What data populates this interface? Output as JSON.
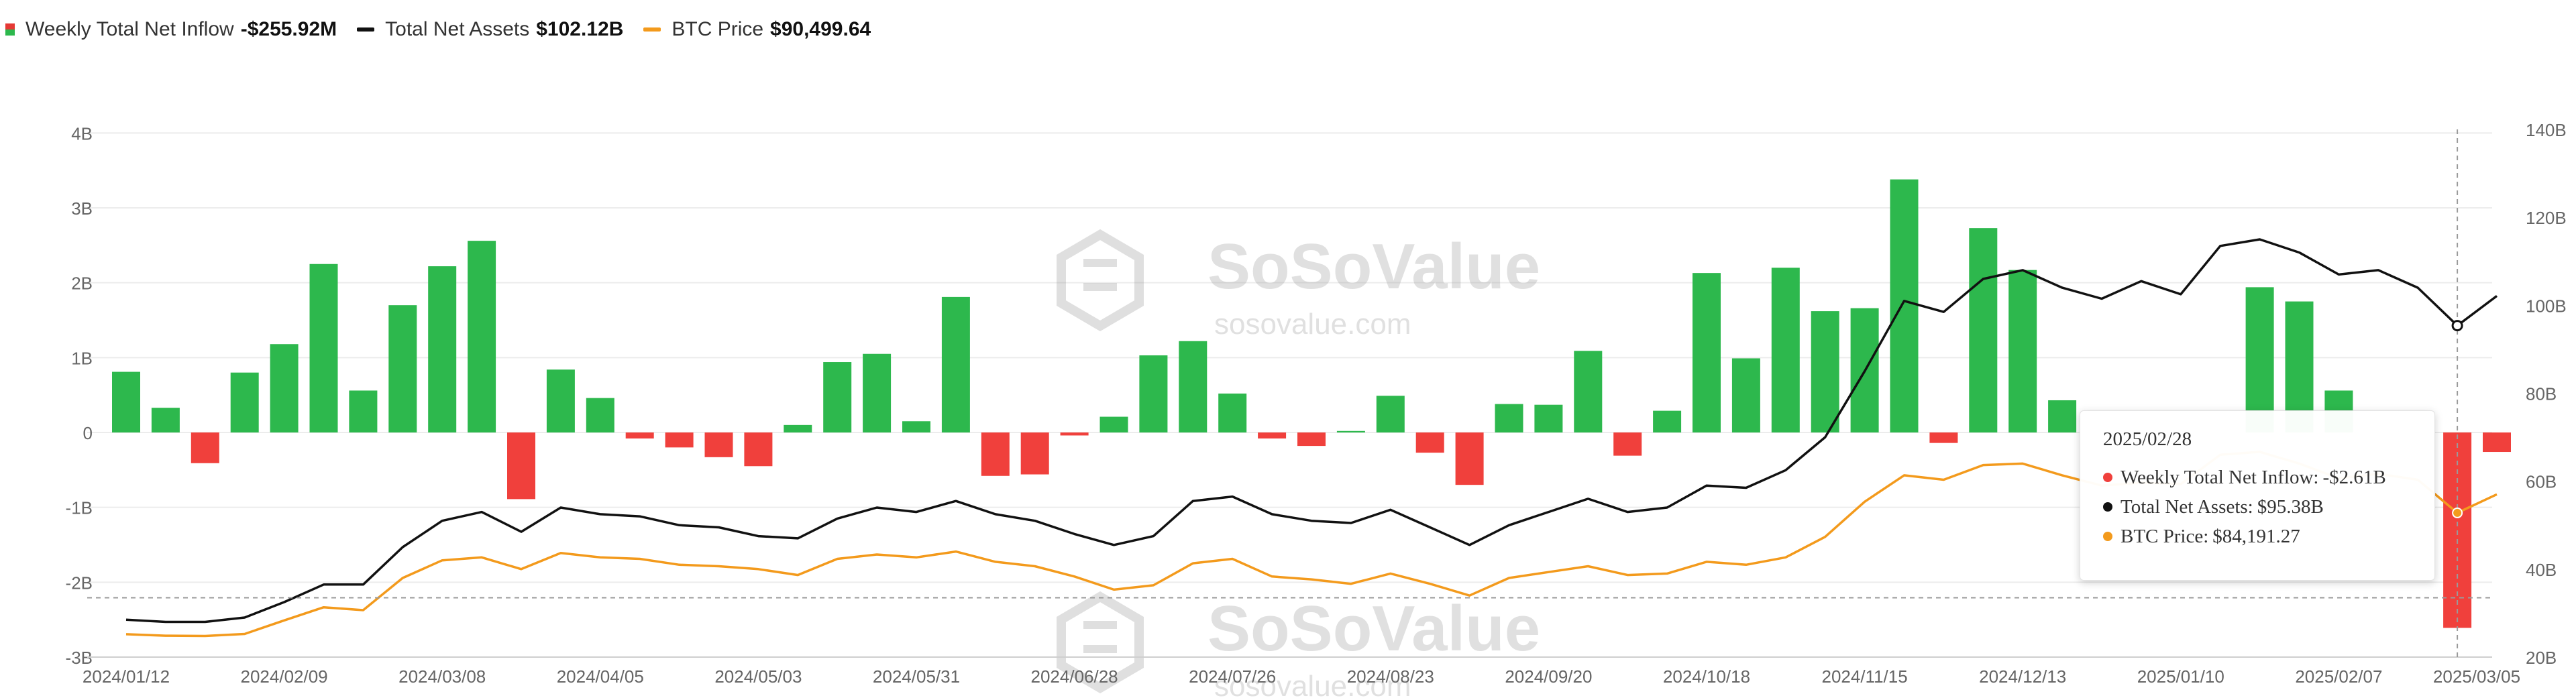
{
  "legend": {
    "inflow": {
      "label": "Weekly Total Net Inflow",
      "value": "-$255.92M"
    },
    "assets": {
      "label": "Total Net Assets",
      "value": "$102.12B"
    },
    "btc": {
      "label": "BTC Price",
      "value": "$90,499.64"
    }
  },
  "colors": {
    "positive": "#2db84d",
    "negative": "#f0403c",
    "assets_line": "#111111",
    "btc_line": "#f39a1c",
    "grid": "#ececec",
    "axis_text": "#666666"
  },
  "watermark": {
    "brand": "SoSoValue",
    "url": "sosovalue.com"
  },
  "tooltip": {
    "date": "2025/02/28",
    "inflow_label": "Weekly Total Net Inflow:",
    "inflow_value": "-$2.61B",
    "assets_label": "Total Net Assets:",
    "assets_value": "$95.38B",
    "btc_label": "BTC Price:",
    "btc_value": "$84,191.27"
  },
  "chart_data": {
    "type": "bar",
    "x_tick_labels": [
      "2024/01/12",
      "2024/02/09",
      "2024/03/08",
      "2024/04/05",
      "2024/05/03",
      "2024/05/31",
      "2024/06/28",
      "2024/07/26",
      "2024/08/23",
      "2024/09/20",
      "2024/10/18",
      "2024/11/15",
      "2024/12/13",
      "2025/01/10",
      "2025/02/07",
      "2025/03/05"
    ],
    "y_left_ticks": [
      "-3B",
      "-2B",
      "-1B",
      "0",
      "1B",
      "2B",
      "3B",
      "4B"
    ],
    "y_left_range": [
      -3,
      4
    ],
    "y_right_ticks": [
      "20B",
      "40B",
      "60B",
      "80B",
      "100B",
      "120B",
      "140B"
    ],
    "y_right_range": [
      20,
      140
    ],
    "highlight_index": 59,
    "reference_y_right": 33.5,
    "series": [
      {
        "key": "inflow",
        "unit": "B",
        "values": [
          0.81,
          0.33,
          -0.41,
          0.8,
          1.18,
          2.25,
          0.56,
          1.7,
          2.22,
          2.56,
          -0.89,
          0.84,
          0.46,
          -0.08,
          -0.2,
          -0.33,
          -0.45,
          0.1,
          0.94,
          1.05,
          0.15,
          1.81,
          -0.58,
          -0.56,
          -0.04,
          0.21,
          1.03,
          1.22,
          0.52,
          -0.08,
          -0.18,
          0.02,
          0.49,
          -0.27,
          -0.7,
          0.38,
          0.37,
          1.09,
          -0.31,
          0.29,
          2.13,
          0.99,
          2.2,
          1.62,
          1.66,
          3.38,
          -0.14,
          2.73,
          2.17,
          0.43,
          0.0,
          0.0,
          0.0,
          0.0,
          1.94,
          1.75,
          0.56,
          0.0,
          0.0,
          -2.61,
          -0.26
        ]
      },
      {
        "key": "assets",
        "unit": "B",
        "values": [
          28.5,
          28.0,
          28.0,
          29.0,
          32.5,
          36.5,
          36.5,
          45.0,
          51.0,
          53.0,
          48.5,
          54.0,
          52.5,
          52.0,
          50.0,
          49.5,
          47.5,
          47.0,
          51.5,
          54.0,
          53.0,
          55.5,
          52.5,
          51.0,
          48.0,
          45.5,
          47.5,
          55.5,
          56.5,
          52.5,
          51.0,
          50.5,
          53.5,
          49.5,
          45.5,
          50.0,
          53.0,
          56.0,
          53.0,
          54.0,
          59.0,
          58.5,
          62.5,
          70.0,
          85.0,
          101.0,
          98.5,
          106.0,
          108.0,
          104.0,
          101.5,
          105.5,
          102.5,
          113.5,
          115.0,
          112.0,
          107.0,
          108.0,
          104.0,
          95.38,
          102.12
        ]
      },
      {
        "key": "btc",
        "unit": "$",
        "values": [
          42800,
          42300,
          42200,
          42900,
          47500,
          52000,
          51000,
          62000,
          68000,
          69000,
          65000,
          70500,
          69000,
          68500,
          66500,
          66000,
          65000,
          63000,
          68500,
          70000,
          69000,
          71000,
          67500,
          66000,
          62500,
          58000,
          59500,
          67000,
          68500,
          62500,
          61500,
          60000,
          63500,
          60000,
          56000,
          62000,
          64000,
          66000,
          63000,
          63500,
          67500,
          66500,
          69000,
          76000,
          88000,
          97000,
          95500,
          100500,
          101000,
          97000,
          93500,
          94500,
          94000,
          104000,
          105000,
          101000,
          96000,
          97500,
          95500,
          84191.27,
          90499.64
        ]
      }
    ]
  }
}
